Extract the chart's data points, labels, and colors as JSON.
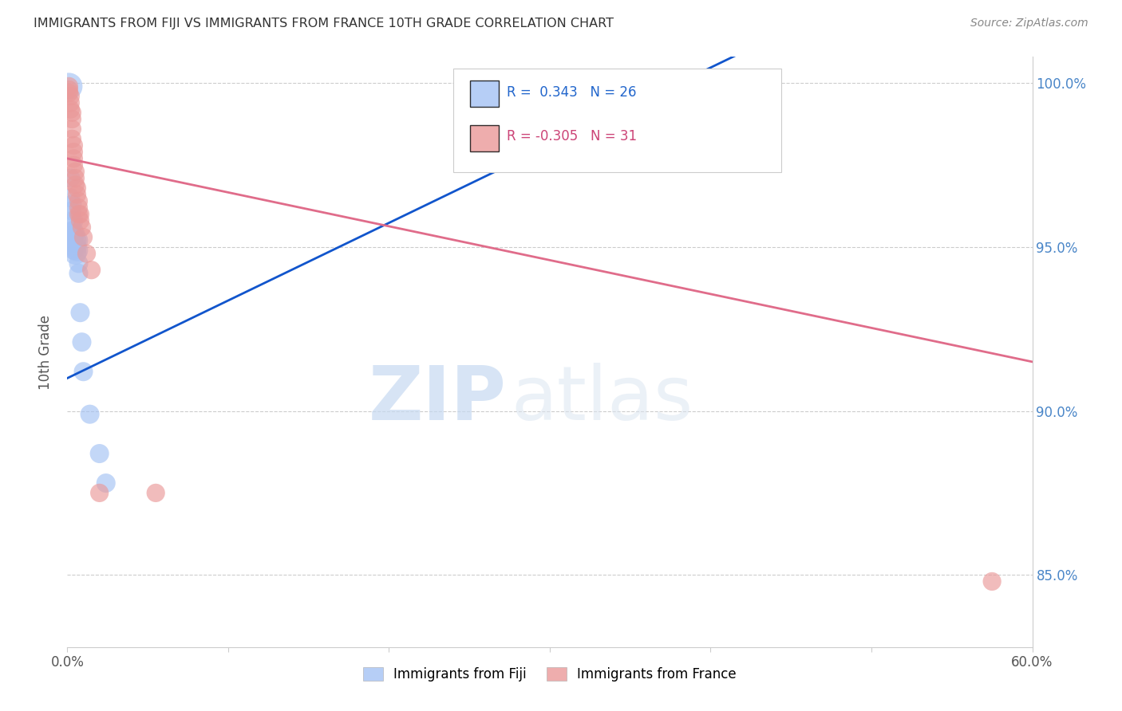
{
  "title": "IMMIGRANTS FROM FIJI VS IMMIGRANTS FROM FRANCE 10TH GRADE CORRELATION CHART",
  "source": "Source: ZipAtlas.com",
  "ylabel": "10th Grade",
  "watermark_zip": "ZIP",
  "watermark_atlas": "atlas",
  "x_min": 0.0,
  "x_max": 0.6,
  "y_min": 0.828,
  "y_max": 1.008,
  "y_ticks": [
    0.85,
    0.9,
    0.95,
    1.0
  ],
  "y_tick_labels": [
    "85.0%",
    "90.0%",
    "95.0%",
    "100.0%"
  ],
  "fiji_color": "#a4c2f4",
  "france_color": "#ea9999",
  "fiji_line_color": "#1155cc",
  "france_line_color": "#e06c8a",
  "legend_fiji_R": "0.343",
  "legend_fiji_N": "26",
  "legend_france_R": "-0.305",
  "legend_france_N": "31",
  "grid_color": "#cccccc",
  "background_color": "#ffffff",
  "fiji_x": [
    0.001,
    0.002,
    0.002,
    0.003,
    0.003,
    0.003,
    0.004,
    0.004,
    0.004,
    0.004,
    0.004,
    0.005,
    0.005,
    0.005,
    0.005,
    0.006,
    0.006,
    0.007,
    0.007,
    0.008,
    0.008,
    0.009,
    0.01,
    0.011,
    0.014,
    0.016
  ],
  "fiji_y": [
    0.997,
    0.964,
    0.96,
    0.96,
    0.957,
    0.954,
    0.958,
    0.955,
    0.953,
    0.951,
    0.949,
    0.953,
    0.95,
    0.948,
    0.946,
    0.951,
    0.948,
    0.938,
    0.935,
    0.93,
    0.927,
    0.92,
    0.91,
    0.905,
    0.879,
    0.875
  ],
  "fiji_sizes": [
    80,
    50,
    50,
    50,
    50,
    50,
    60,
    60,
    60,
    60,
    60,
    65,
    65,
    65,
    65,
    70,
    70,
    70,
    70,
    75,
    75,
    70,
    65,
    60,
    55,
    50
  ],
  "france_x": [
    0.001,
    0.001,
    0.002,
    0.002,
    0.003,
    0.003,
    0.003,
    0.004,
    0.004,
    0.005,
    0.005,
    0.005,
    0.006,
    0.006,
    0.007,
    0.007,
    0.007,
    0.008,
    0.01,
    0.01,
    0.011,
    0.011,
    0.013,
    0.013,
    0.016,
    0.017,
    0.02,
    0.02,
    0.022,
    0.055,
    0.575
  ],
  "france_y": [
    0.999,
    0.998,
    0.997,
    0.996,
    0.995,
    0.994,
    0.993,
    0.992,
    0.988,
    0.987,
    0.983,
    0.98,
    0.978,
    0.975,
    0.972,
    0.97,
    0.965,
    0.96,
    0.957,
    0.952,
    0.96,
    0.958,
    0.955,
    0.95,
    0.953,
    0.95,
    0.96,
    0.95,
    0.878,
    0.878,
    0.848
  ],
  "france_sizes": [
    60,
    60,
    60,
    60,
    60,
    60,
    60,
    60,
    60,
    60,
    60,
    60,
    60,
    60,
    60,
    60,
    60,
    60,
    60,
    60,
    60,
    60,
    60,
    60,
    60,
    60,
    60,
    60,
    60,
    60,
    60
  ]
}
